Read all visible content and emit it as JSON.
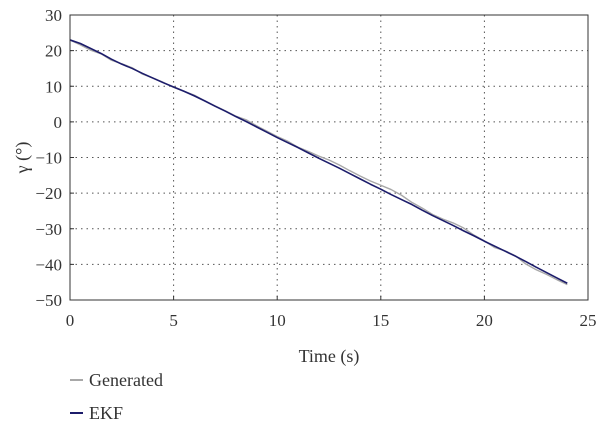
{
  "chart_data": {
    "type": "line",
    "title": "",
    "xlabel": "Time (s)",
    "ylabel": "γ (°)",
    "xlim": [
      0,
      25
    ],
    "ylim": [
      -50,
      30
    ],
    "xticks": [
      0,
      5,
      10,
      15,
      20,
      25
    ],
    "yticks": [
      30,
      20,
      10,
      0,
      -10,
      -20,
      -30,
      -40,
      -50
    ],
    "xtick_labels": [
      "0",
      "5",
      "10",
      "15",
      "20",
      "25"
    ],
    "ytick_labels": [
      "30",
      "20",
      "10",
      "0",
      "−10",
      "−20",
      "−30",
      "−40",
      "−50"
    ],
    "grid": true,
    "legend_position": "bottom-left, below plot",
    "series": [
      {
        "name": "Generated",
        "color": "#a8a8a8",
        "x": [
          0,
          0.5,
          1,
          1.5,
          2,
          2.5,
          3,
          3.5,
          4,
          4.5,
          5,
          5.5,
          6,
          6.5,
          7,
          7.5,
          8,
          8.5,
          9,
          9.5,
          10,
          10.5,
          11,
          11.5,
          12,
          12.5,
          13,
          13.5,
          14,
          14.5,
          15,
          15.5,
          16,
          16.5,
          17,
          17.5,
          18,
          18.5,
          19,
          19.5,
          20,
          20.5,
          21,
          21.5,
          22,
          22.5,
          23,
          23.5,
          24
        ],
        "y": [
          23,
          21.6,
          20.1,
          19.1,
          17.3,
          16.3,
          15.2,
          13.4,
          12.3,
          11.1,
          9.7,
          8.6,
          7.5,
          5.9,
          4.5,
          3.1,
          1.6,
          0.6,
          -1.1,
          -2.6,
          -4.1,
          -5.4,
          -7.1,
          -8.3,
          -9.6,
          -10.7,
          -12.1,
          -13.7,
          -15.2,
          -16.6,
          -17.8,
          -19.0,
          -20.6,
          -22.6,
          -24.2,
          -26.0,
          -27.3,
          -28.4,
          -29.8,
          -31.8,
          -33.4,
          -35.3,
          -36.2,
          -37.6,
          -39.9,
          -41.5,
          -42.8,
          -44.3,
          -45.7
        ]
      },
      {
        "name": "EKF",
        "color": "#1c1c6b",
        "x": [
          0,
          0.5,
          1,
          1.5,
          2,
          2.5,
          3,
          3.5,
          4,
          4.5,
          5,
          5.5,
          6,
          6.5,
          7,
          7.5,
          8,
          8.5,
          9,
          9.5,
          10,
          10.5,
          11,
          11.5,
          12,
          12.5,
          13,
          13.5,
          14,
          14.5,
          15,
          15.5,
          16,
          16.5,
          17,
          17.5,
          18,
          18.5,
          19,
          19.5,
          20,
          20.5,
          21,
          21.5,
          22,
          22.5,
          23,
          23.5,
          24
        ],
        "y": [
          23,
          22.0,
          20.6,
          19.2,
          17.6,
          16.2,
          15.0,
          13.6,
          12.3,
          11.0,
          9.8,
          8.6,
          7.3,
          5.9,
          4.4,
          3.0,
          1.5,
          0.1,
          -1.4,
          -2.9,
          -4.4,
          -5.8,
          -7.2,
          -8.7,
          -10.2,
          -11.6,
          -13.0,
          -14.5,
          -16.0,
          -17.5,
          -18.9,
          -20.4,
          -21.8,
          -23.2,
          -24.8,
          -26.3,
          -27.7,
          -29.1,
          -30.6,
          -32.0,
          -33.5,
          -34.9,
          -36.3,
          -37.7,
          -39.2,
          -40.8,
          -42.3,
          -43.8,
          -45.3
        ]
      }
    ]
  }
}
